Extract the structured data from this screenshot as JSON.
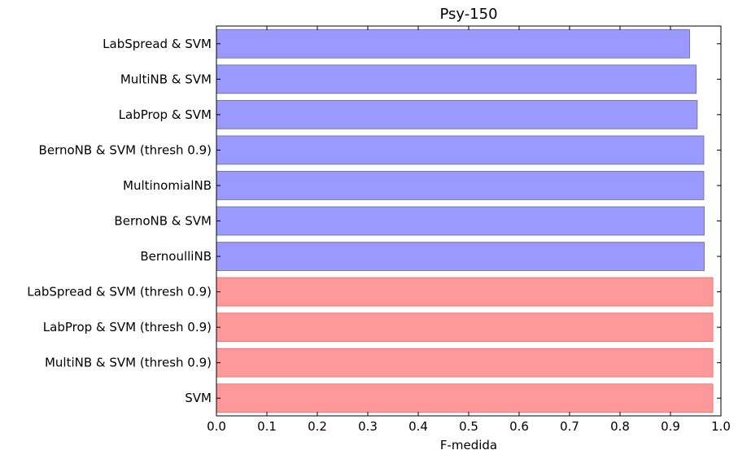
{
  "chart_data": {
    "type": "bar",
    "orientation": "horizontal",
    "title": "Psy-150",
    "xlabel": "F-medida",
    "ylabel": "",
    "xlim": [
      0.0,
      1.0
    ],
    "xticks": [
      "0.0",
      "0.1",
      "0.2",
      "0.3",
      "0.4",
      "0.5",
      "0.6",
      "0.7",
      "0.8",
      "0.9",
      "1.0"
    ],
    "grid": false,
    "categories": [
      "LabSpread & SVM",
      "MultiNB & SVM",
      "LabProp & SVM",
      "BernoNB & SVM (thresh 0.9)",
      "MultinomialNB",
      "BernoNB & SVM",
      "BernoulliNB",
      "LabSpread & SVM (thresh 0.9)",
      "LabProp & SVM (thresh 0.9)",
      "MultiNB & SVM (thresh 0.9)",
      "SVM"
    ],
    "values": [
      0.938,
      0.951,
      0.953,
      0.966,
      0.966,
      0.967,
      0.967,
      0.984,
      0.984,
      0.984,
      0.984
    ],
    "bar_colors": [
      "#9999ff",
      "#9999ff",
      "#9999ff",
      "#9999ff",
      "#9999ff",
      "#9999ff",
      "#9999ff",
      "#ff9999",
      "#ff9999",
      "#ff9999",
      "#ff9999"
    ],
    "bar_edge_colors": [
      "#7777aa",
      "#7777aa",
      "#7777aa",
      "#7777aa",
      "#7777aa",
      "#7777aa",
      "#7777aa",
      "#ee7777",
      "#ee7777",
      "#ee7777",
      "#ee7777"
    ]
  }
}
